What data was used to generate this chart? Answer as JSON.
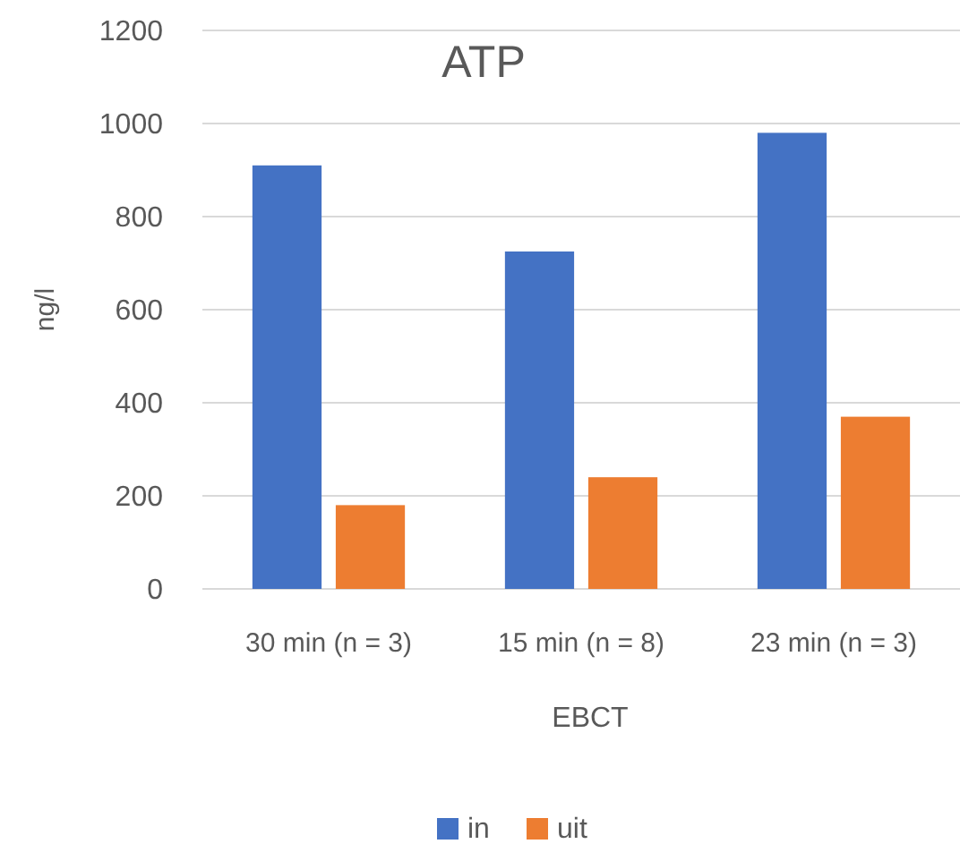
{
  "chart_data": {
    "type": "bar",
    "title": "ATP",
    "xlabel": "EBCT",
    "ylabel": "ng/l",
    "categories": [
      "30 min (n = 3)",
      "15 min (n = 8)",
      "23 min (n = 3)"
    ],
    "series": [
      {
        "name": "in",
        "color": "#4472c4",
        "values": [
          910,
          725,
          980
        ]
      },
      {
        "name": "uit",
        "color": "#ed7d31",
        "values": [
          180,
          240,
          370
        ]
      }
    ],
    "ylim": [
      0,
      1200
    ],
    "yticks": [
      0,
      200,
      400,
      600,
      800,
      1000,
      1200
    ],
    "grid": "y",
    "legend": "bottom"
  }
}
